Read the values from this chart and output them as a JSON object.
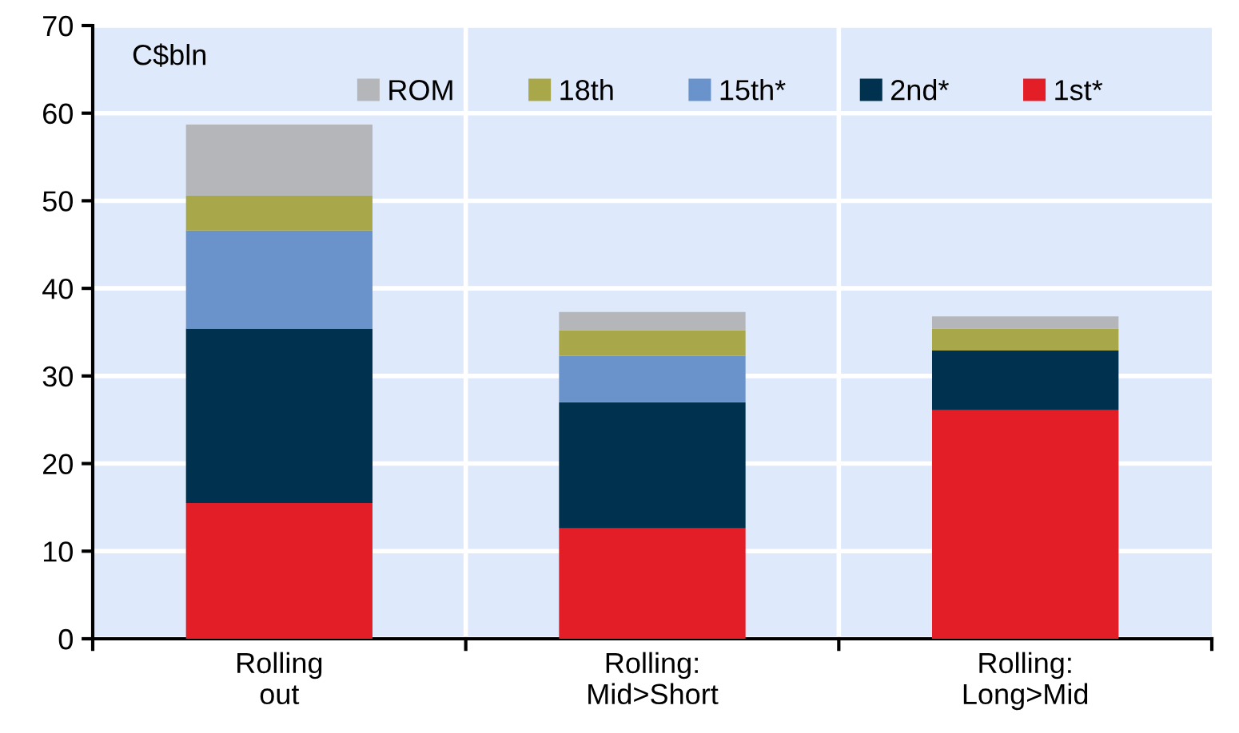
{
  "chart_data": {
    "type": "bar",
    "stacked": true,
    "ylabel": "C$bln",
    "categories": [
      "Rolling\nout",
      "Rolling:\nMid>Short",
      "Rolling:\nLong>Mid"
    ],
    "series": [
      {
        "name": "1st*",
        "color": "#e31e26",
        "values": [
          15.5,
          12.6,
          26.1
        ]
      },
      {
        "name": "2nd*",
        "color": "#00324f",
        "values": [
          19.9,
          14.4,
          6.8
        ]
      },
      {
        "name": "15th*",
        "color": "#6a93cb",
        "values": [
          11.2,
          5.3,
          0
        ]
      },
      {
        "name": "18th",
        "color": "#a8a84a",
        "values": [
          4.0,
          2.9,
          2.5
        ]
      },
      {
        "name": "ROM",
        "color": "#b5b6b9",
        "values": [
          8.1,
          2.1,
          1.4
        ]
      }
    ],
    "ylim": [
      0,
      70
    ],
    "yticks": [
      0,
      10,
      20,
      30,
      40,
      50,
      60,
      70
    ],
    "grid": true,
    "legend": "top"
  }
}
